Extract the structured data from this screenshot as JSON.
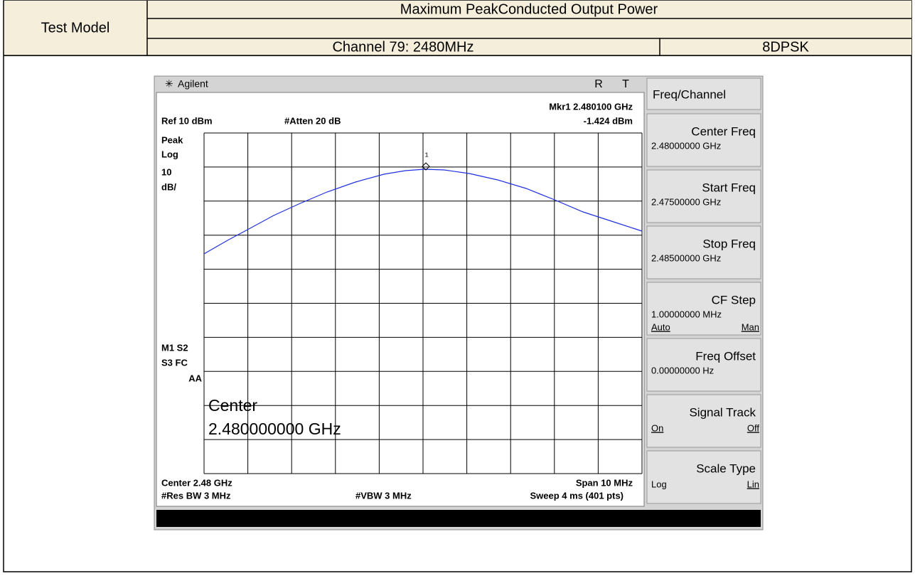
{
  "table": {
    "row_header": "Test Model",
    "title": "Maximum PeakConducted Output Power",
    "channel": "Channel 79: 2480MHz",
    "modulation": "8DPSK"
  },
  "analyzer": {
    "brand": "Agilent",
    "status_r": "R",
    "status_t": "T",
    "marker": "Mkr1  2.480100 GHz",
    "marker_level": "-1.424 dBm",
    "ref": "Ref 10 dBm",
    "atten": "#Atten 20 dB",
    "detector": "Peak",
    "scale": "Log",
    "scale_div": "10",
    "scale_unit": "dB/",
    "marker_label": "1",
    "flags": [
      "M1  S2",
      "S3  FC",
      "AA"
    ],
    "center_popup": "Center",
    "center_popup_value": "2.480000000 GHz",
    "center": "Center 2.48 GHz",
    "span": "Span 10 MHz",
    "rbw": "#Res BW 3 MHz",
    "vbw": "#VBW 3 MHz",
    "sweep": "Sweep 4 ms (401 pts)"
  },
  "softkeys": [
    {
      "label": "Freq/Channel"
    },
    {
      "label": "Center Freq",
      "value": "2.48000000 GHz"
    },
    {
      "label": "Start Freq",
      "value": "2.47500000 GHz"
    },
    {
      "label": "Stop Freq",
      "value": "2.48500000 GHz"
    },
    {
      "label": "CF Step",
      "value": "1.00000000 MHz",
      "left": "Auto",
      "right": "Man"
    },
    {
      "label": "Freq Offset",
      "value": "0.00000000  Hz"
    },
    {
      "label": "Signal Track",
      "left": "On",
      "right": "Off"
    },
    {
      "label": "Scale Type",
      "left": "Log",
      "right": "Lin"
    }
  ]
}
